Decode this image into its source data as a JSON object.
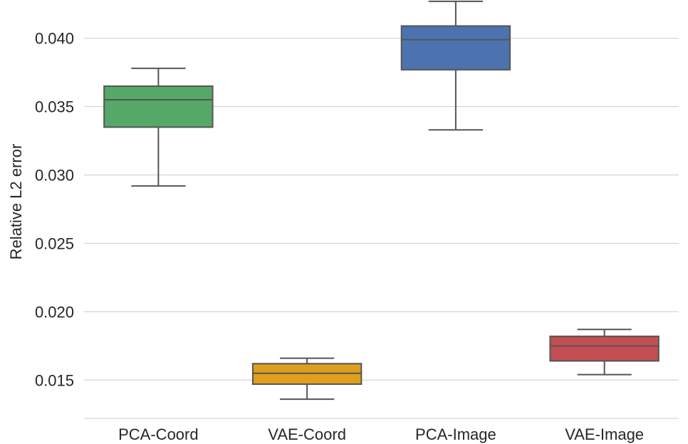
{
  "chart_data": {
    "type": "boxplot",
    "title": "",
    "xlabel": "",
    "ylabel": "Relative L2 error",
    "ylim": [
      0.0122,
      0.0428
    ],
    "yticks": [
      0.015,
      0.02,
      0.025,
      0.03,
      0.035,
      0.04
    ],
    "ytick_labels": [
      "0.015",
      "0.020",
      "0.025",
      "0.030",
      "0.035",
      "0.040"
    ],
    "grid": "horizontal",
    "categories": [
      "PCA-Coord",
      "VAE-Coord",
      "PCA-Image",
      "VAE-Image"
    ],
    "boxes": [
      {
        "label": "PCA-Coord",
        "whisker_low": 0.0292,
        "q1": 0.0335,
        "median": 0.0355,
        "q3": 0.0365,
        "whisker_high": 0.0378,
        "color": "#55a868"
      },
      {
        "label": "VAE-Coord",
        "whisker_low": 0.0136,
        "q1": 0.0147,
        "median": 0.0155,
        "q3": 0.0162,
        "whisker_high": 0.0166,
        "color": "#dd9f1d"
      },
      {
        "label": "PCA-Image",
        "whisker_low": 0.0333,
        "q1": 0.0377,
        "median": 0.0399,
        "q3": 0.0409,
        "whisker_high": 0.0427,
        "color": "#4c72b0"
      },
      {
        "label": "VAE-Image",
        "whisker_low": 0.0154,
        "q1": 0.0164,
        "median": 0.0175,
        "q3": 0.0182,
        "whisker_high": 0.0187,
        "color": "#c44e52"
      }
    ],
    "colors": {
      "grid": "#cccccc",
      "line": "#555555",
      "text": "#262626"
    }
  }
}
